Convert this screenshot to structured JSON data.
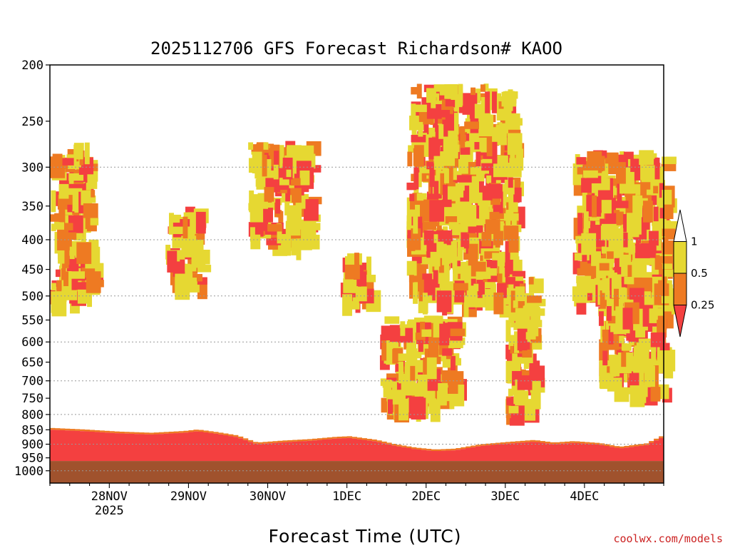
{
  "chart_data": {
    "type": "heatmap",
    "title": "2025112706 GFS Forecast Richardson# KAOO",
    "xlabel": "Forecast Time (UTC)",
    "ylabel": "",
    "credit": "coolwx.com/models",
    "y_ticks": [
      200,
      250,
      300,
      350,
      400,
      450,
      500,
      550,
      600,
      650,
      700,
      750,
      800,
      850,
      900,
      950,
      1000
    ],
    "y_scale": "log (pressure)",
    "ylim": [
      200,
      1050
    ],
    "y_gridlines": [
      300,
      400,
      500,
      600,
      700,
      800,
      900,
      1000
    ],
    "x_ticks": [
      {
        "label": "28NOV",
        "sublabel": "2025",
        "hours": 18
      },
      {
        "label": "29NOV",
        "sublabel": "",
        "hours": 42
      },
      {
        "label": "30NOV",
        "sublabel": "",
        "hours": 66
      },
      {
        "label": "1DEC",
        "sublabel": "",
        "hours": 90
      },
      {
        "label": "2DEC",
        "sublabel": "",
        "hours": 114
      },
      {
        "label": "3DEC",
        "sublabel": "",
        "hours": 138
      },
      {
        "label": "4DEC",
        "sublabel": "",
        "hours": 162
      }
    ],
    "xlim_hours": [
      0,
      186
    ],
    "legend": {
      "placement": "right",
      "levels": [
        {
          "label": "1",
          "color": "#ffffff"
        },
        {
          "label": "0.5",
          "color": "#e6d832"
        },
        {
          "label": "0.25",
          "color": "#ee7a22"
        },
        {
          "label": "",
          "color": "#f44040"
        }
      ]
    },
    "colors": {
      "ri_lt_025": "#f44040",
      "ri_025_05": "#ee7a22",
      "ri_05_1": "#e6d832",
      "terrain": "#a0522d"
    },
    "surface_pressure_hpa": 962,
    "boundary_layer_top_hpa": [
      [
        0,
        850
      ],
      [
        10,
        855
      ],
      [
        20,
        862
      ],
      [
        30,
        866
      ],
      [
        40,
        860
      ],
      [
        44,
        855
      ],
      [
        50,
        864
      ],
      [
        56,
        875
      ],
      [
        62,
        900
      ],
      [
        70,
        893
      ],
      [
        78,
        888
      ],
      [
        86,
        880
      ],
      [
        90,
        878
      ],
      [
        98,
        890
      ],
      [
        104,
        906
      ],
      [
        110,
        918
      ],
      [
        116,
        925
      ],
      [
        122,
        922
      ],
      [
        130,
        906
      ],
      [
        138,
        898
      ],
      [
        146,
        891
      ],
      [
        152,
        900
      ],
      [
        158,
        895
      ],
      [
        166,
        902
      ],
      [
        172,
        915
      ],
      [
        180,
        903
      ],
      [
        186,
        870
      ]
    ],
    "upper_ri_cells": [
      {
        "t": [
          0,
          12
        ],
        "p": [
          270,
          500
        ],
        "cat": "mixed"
      },
      {
        "t": [
          35,
          45
        ],
        "p": [
          350,
          470
        ],
        "cat": "mixed"
      },
      {
        "t": [
          60,
          78
        ],
        "p": [
          270,
          400
        ],
        "cat": "mixed"
      },
      {
        "t": [
          88,
          96
        ],
        "p": [
          420,
          510
        ],
        "cat": "mixed"
      },
      {
        "t": [
          100,
          122
        ],
        "p": [
          540,
          760
        ],
        "cat": "mixed"
      },
      {
        "t": [
          108,
          140
        ],
        "p": [
          215,
          500
        ],
        "cat": "mixed"
      },
      {
        "t": [
          138,
          146
        ],
        "p": [
          460,
          780
        ],
        "cat": "mixed"
      },
      {
        "t": [
          158,
          186
        ],
        "p": [
          280,
          500
        ],
        "cat": "mixed"
      },
      {
        "t": [
          166,
          186
        ],
        "p": [
          460,
          720
        ],
        "cat": "mixed"
      }
    ]
  }
}
